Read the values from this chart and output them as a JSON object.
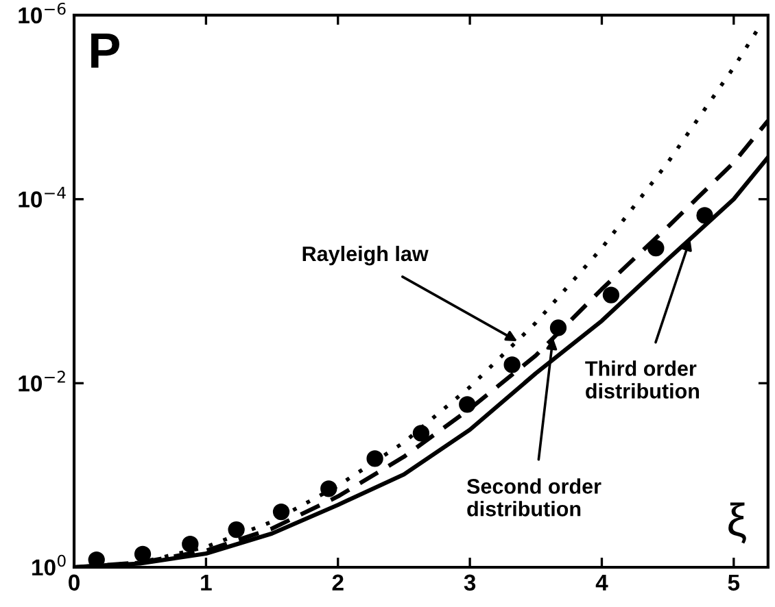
{
  "chart_data": {
    "type": "line",
    "xlabel": "ξ",
    "ylabel": "P",
    "log": "y",
    "xlim": [
      0,
      5.26
    ],
    "ylim": [
      1,
      1e-06
    ],
    "xticks": [
      0,
      1,
      2,
      3,
      4,
      5
    ],
    "yticks": [
      {
        "value": 1,
        "label": "10$^{0}$"
      },
      {
        "value": 0.01,
        "label": "10$^{−2}$"
      },
      {
        "value": 0.0001,
        "label": "10$^{−4}$"
      },
      {
        "value": 1e-06,
        "label": "10$^{−6}$"
      }
    ],
    "grid": false,
    "series": [
      {
        "line_style": "dotted",
        "color": "#000000",
        "x": [
          0,
          0.5,
          1,
          1.5,
          2,
          2.5,
          3,
          3.5,
          4,
          4.5,
          5,
          5.2
        ],
        "values": [
          1,
          0.89,
          0.6,
          0.32,
          0.13,
          0.044,
          0.011,
          0.0022,
          0.00034,
          4e-05,
          3.7e-06,
          1.3e-06
        ]
      },
      {
        "line_style": "dashed",
        "color": "#000000",
        "x": [
          0,
          0.5,
          1,
          1.5,
          2,
          2.5,
          3,
          3.5,
          4,
          4.5,
          5,
          5.26
        ],
        "values": [
          1,
          0.89,
          0.66,
          0.38,
          0.17,
          0.063,
          0.019,
          0.005,
          0.00095,
          0.0002,
          4e-05,
          1.4e-05
        ]
      },
      {
        "line_style": "solid",
        "color": "#000000",
        "x": [
          0,
          0.5,
          1,
          1.5,
          2,
          2.5,
          3,
          3.5,
          4,
          4.5,
          5,
          5.26
        ],
        "values": [
          1,
          0.91,
          0.71,
          0.43,
          0.21,
          0.098,
          0.032,
          0.0078,
          0.0021,
          0.00045,
          0.0001,
          3.5e-05
        ]
      },
      {
        "type": "scatter",
        "marker": "circle",
        "color": "#000000",
        "x": [
          0.17,
          0.52,
          0.88,
          1.23,
          1.57,
          1.93,
          2.28,
          2.63,
          2.98,
          3.32,
          3.67,
          4.07,
          4.41,
          4.78
        ],
        "values": [
          0.83,
          0.72,
          0.56,
          0.39,
          0.25,
          0.14,
          0.066,
          0.035,
          0.017,
          0.0063,
          0.0025,
          0.0011,
          0.00034,
          0.00015
        ]
      }
    ],
    "annotations": [
      {
        "text": "Rayleigh law",
        "x": 3.36,
        "y": 0.0035
      },
      {
        "text": "Second order\ndistribution",
        "x": 3.63,
        "y": 0.0032
      },
      {
        "text": "Third order\ndistribution",
        "x": 4.67,
        "y": 0.00027
      }
    ]
  }
}
